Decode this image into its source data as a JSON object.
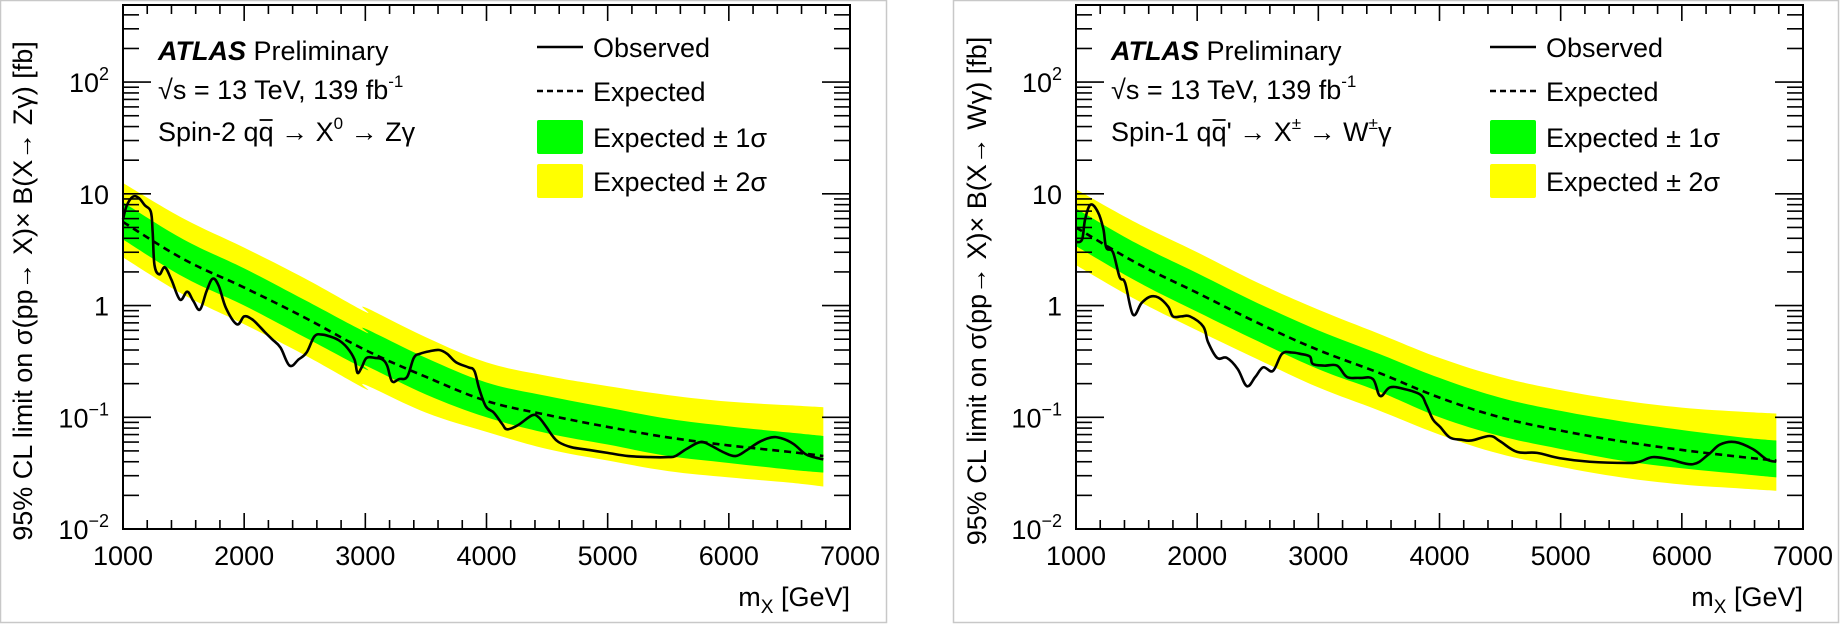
{
  "colors": {
    "observed": "#000000",
    "expected": "#000000",
    "band_1sigma": "#00ff00",
    "band_2sigma": "#ffff00",
    "frame": "#000000",
    "panel_border": "#c8c8c8"
  },
  "chart_data": [
    {
      "type": "line",
      "panel": "left",
      "title_lines": {
        "experiment": "ATLAS",
        "status": "Preliminary",
        "energy_prefix": "√s = 13 TeV, 139 fb",
        "energy_sup": "-1",
        "process_pre": "Spin-2 q",
        "process_qbar": "q",
        "process_arrow1": " → X",
        "process_sup": "0",
        "process_post": " → Zγ"
      },
      "xlabel": "m",
      "xlabel_sub": "X",
      "xlabel_unit": " [GeV]",
      "ylabel": "95% CL limit on σ(pp→ X)× B(X→ Zγ) [fb]",
      "xlim": [
        1000,
        7000
      ],
      "ylim": [
        0.01,
        490
      ],
      "yscale": "log",
      "xticks": [
        "1000",
        "2000",
        "3000",
        "4000",
        "5000",
        "6000",
        "7000"
      ],
      "yticks": [
        {
          "value": 0.01,
          "base": "10",
          "exp": "−2"
        },
        {
          "value": 0.1,
          "base": "10",
          "exp": "−1"
        },
        {
          "value": 1,
          "base": "1",
          "exp": ""
        },
        {
          "value": 10,
          "base": "10",
          "exp": ""
        },
        {
          "value": 100,
          "base": "10",
          "exp": "2"
        }
      ],
      "legend": {
        "position": "top-right",
        "entries": [
          {
            "label": "Observed",
            "style": "solid-line"
          },
          {
            "label": "Expected",
            "style": "dashed-line"
          },
          {
            "label": "Expected ± 1σ",
            "style": "green-box"
          },
          {
            "label": "Expected ± 2σ",
            "style": "yellow-box"
          }
        ]
      },
      "series": [
        {
          "name": "Observed",
          "x": [
            1000,
            1030,
            1080,
            1130,
            1180,
            1230,
            1245,
            1260,
            1300,
            1345,
            1400,
            1470,
            1530,
            1580,
            1635,
            1690,
            1740,
            1790,
            1850,
            1940,
            2000,
            2060,
            2110,
            2170,
            2230,
            2300,
            2375,
            2450,
            2515,
            2580,
            2640,
            2705,
            2780,
            2850,
            2910,
            2935,
            2970,
            3010,
            3080,
            3140,
            3180,
            3220,
            3280,
            3345,
            3400,
            3450,
            3530,
            3610,
            3675,
            3750,
            3850,
            3900,
            3940,
            3995,
            4060,
            4130,
            4170,
            4260,
            4375,
            4430,
            4490,
            4545,
            4595,
            4700,
            4845,
            5000,
            5170,
            5350,
            5500,
            5560,
            5650,
            5765,
            5850,
            5950,
            6055,
            6150,
            6250,
            6350,
            6430,
            6530,
            6630,
            6700,
            6780
          ],
          "y": [
            5.9,
            7.8,
            9.4,
            9.2,
            7.9,
            6.9,
            4.5,
            2.3,
            1.9,
            2.2,
            1.7,
            1.13,
            1.33,
            1.1,
            0.92,
            1.35,
            1.74,
            1.5,
            0.95,
            0.68,
            0.8,
            0.76,
            0.68,
            0.58,
            0.5,
            0.42,
            0.29,
            0.33,
            0.38,
            0.53,
            0.55,
            0.53,
            0.49,
            0.42,
            0.33,
            0.25,
            0.28,
            0.34,
            0.34,
            0.33,
            0.29,
            0.21,
            0.22,
            0.23,
            0.34,
            0.37,
            0.39,
            0.4,
            0.37,
            0.31,
            0.28,
            0.26,
            0.18,
            0.125,
            0.11,
            0.087,
            0.078,
            0.085,
            0.104,
            0.1,
            0.083,
            0.068,
            0.06,
            0.054,
            0.051,
            0.048,
            0.045,
            0.044,
            0.044,
            0.045,
            0.052,
            0.06,
            0.056,
            0.049,
            0.045,
            0.051,
            0.06,
            0.066,
            0.065,
            0.058,
            0.047,
            0.044,
            0.042
          ]
        },
        {
          "name": "Expected",
          "x": [
            1000,
            1500,
            2000,
            2500,
            3000,
            3500,
            4000,
            4500,
            5000,
            5500,
            6000,
            6500,
            6780
          ],
          "y": [
            5.6,
            2.6,
            1.45,
            0.78,
            0.4,
            0.23,
            0.14,
            0.105,
            0.082,
            0.066,
            0.056,
            0.049,
            0.045
          ]
        },
        {
          "name": "Expected ± 1σ",
          "x": [
            1000,
            1500,
            2000,
            2500,
            2999,
            3001,
            3500,
            4000,
            4500,
            5000,
            5500,
            6000,
            6500,
            6780
          ],
          "upper": [
            8.4,
            3.9,
            2.15,
            1.12,
            0.58,
            0.62,
            0.34,
            0.205,
            0.155,
            0.122,
            0.097,
            0.083,
            0.073,
            0.068
          ],
          "lower": [
            3.9,
            1.8,
            1.0,
            0.52,
            0.27,
            0.29,
            0.16,
            0.1,
            0.072,
            0.057,
            0.045,
            0.039,
            0.034,
            0.032
          ]
        },
        {
          "name": "Expected ± 2σ",
          "x": [
            1000,
            1500,
            2000,
            2500,
            2999,
            3001,
            3500,
            4000,
            4500,
            5000,
            5500,
            6000,
            6500,
            6780
          ],
          "upper": [
            12.5,
            6.0,
            3.3,
            1.75,
            0.88,
            0.96,
            0.52,
            0.31,
            0.235,
            0.19,
            0.158,
            0.138,
            0.128,
            0.123
          ],
          "lower": [
            2.7,
            1.25,
            0.68,
            0.36,
            0.18,
            0.195,
            0.11,
            0.074,
            0.052,
            0.041,
            0.033,
            0.029,
            0.026,
            0.024
          ]
        }
      ]
    },
    {
      "type": "line",
      "panel": "right",
      "title_lines": {
        "experiment": "ATLAS",
        "status": "Preliminary",
        "energy_prefix": "√s = 13 TeV, 139 fb",
        "energy_sup": "-1",
        "process_pre": "Spin-1 q",
        "process_qbar": "q",
        "process_arrow1": "' → X",
        "process_sup": "±",
        "process_post": " → W",
        "process_post_sup": "±",
        "process_tail": "γ"
      },
      "xlabel": "m",
      "xlabel_sub": "X",
      "xlabel_unit": " [GeV]",
      "ylabel": "95% CL limit on σ(pp→ X)× B(X→ Wγ) [fb]",
      "xlim": [
        1000,
        7000
      ],
      "ylim": [
        0.01,
        490
      ],
      "yscale": "log",
      "xticks": [
        "1000",
        "2000",
        "3000",
        "4000",
        "5000",
        "6000",
        "7000"
      ],
      "yticks": [
        {
          "value": 0.01,
          "base": "10",
          "exp": "−2"
        },
        {
          "value": 0.1,
          "base": "10",
          "exp": "−1"
        },
        {
          "value": 1,
          "base": "1",
          "exp": ""
        },
        {
          "value": 10,
          "base": "10",
          "exp": ""
        },
        {
          "value": 100,
          "base": "10",
          "exp": "2"
        }
      ],
      "legend": {
        "position": "top-right",
        "entries": [
          {
            "label": "Observed",
            "style": "solid-line"
          },
          {
            "label": "Expected",
            "style": "dashed-line"
          },
          {
            "label": "Expected ± 1σ",
            "style": "green-box"
          },
          {
            "label": "Expected ± 2σ",
            "style": "yellow-box"
          }
        ]
      },
      "series": [
        {
          "name": "Observed",
          "x": [
            1000,
            1050,
            1075,
            1120,
            1180,
            1225,
            1250,
            1305,
            1360,
            1405,
            1470,
            1540,
            1610,
            1680,
            1760,
            1800,
            1870,
            1940,
            2050,
            2090,
            2165,
            2245,
            2335,
            2410,
            2480,
            2545,
            2625,
            2700,
            2780,
            2850,
            2930,
            2955,
            3050,
            3155,
            3235,
            3340,
            3450,
            3510,
            3590,
            3700,
            3840,
            3890,
            3945,
            4005,
            4085,
            4180,
            4265,
            4415,
            4500,
            4640,
            4805,
            4995,
            5240,
            5545,
            5650,
            5760,
            5900,
            6090,
            6215,
            6315,
            6440,
            6585,
            6700,
            6780
          ],
          "y": [
            3.7,
            3.9,
            5.9,
            8.0,
            6.9,
            4.9,
            3.3,
            3.0,
            1.8,
            1.6,
            0.83,
            1.05,
            1.2,
            1.18,
            0.98,
            0.8,
            0.8,
            0.8,
            0.65,
            0.47,
            0.34,
            0.34,
            0.27,
            0.19,
            0.23,
            0.28,
            0.26,
            0.37,
            0.38,
            0.37,
            0.35,
            0.3,
            0.29,
            0.29,
            0.23,
            0.225,
            0.22,
            0.155,
            0.185,
            0.18,
            0.16,
            0.13,
            0.096,
            0.082,
            0.066,
            0.063,
            0.062,
            0.068,
            0.061,
            0.049,
            0.048,
            0.043,
            0.04,
            0.039,
            0.04,
            0.044,
            0.042,
            0.038,
            0.046,
            0.057,
            0.06,
            0.052,
            0.042,
            0.04
          ]
        },
        {
          "name": "Expected",
          "x": [
            1000,
            1500,
            2000,
            2500,
            3000,
            3500,
            4000,
            4500,
            5000,
            5500,
            6000,
            6500,
            6780
          ],
          "y": [
            5.0,
            2.4,
            1.3,
            0.7,
            0.4,
            0.25,
            0.15,
            0.1,
            0.076,
            0.061,
            0.051,
            0.044,
            0.041
          ]
        },
        {
          "name": "Expected ± 1σ",
          "x": [
            1000,
            1500,
            2000,
            2500,
            3000,
            3500,
            4000,
            4500,
            5000,
            5500,
            6000,
            6500,
            6780
          ],
          "upper": [
            7.4,
            3.6,
            1.95,
            1.05,
            0.6,
            0.37,
            0.225,
            0.15,
            0.114,
            0.092,
            0.077,
            0.066,
            0.062
          ],
          "lower": [
            3.4,
            1.65,
            0.88,
            0.48,
            0.27,
            0.17,
            0.1,
            0.068,
            0.052,
            0.041,
            0.035,
            0.031,
            0.029
          ]
        },
        {
          "name": "Expected ± 2σ",
          "x": [
            1000,
            1500,
            2000,
            2500,
            3000,
            3500,
            4000,
            4500,
            5000,
            5500,
            6000,
            6500,
            6780
          ],
          "upper": [
            11.0,
            5.5,
            3.0,
            1.6,
            0.92,
            0.56,
            0.34,
            0.23,
            0.175,
            0.142,
            0.122,
            0.112,
            0.108
          ],
          "lower": [
            2.3,
            1.12,
            0.6,
            0.33,
            0.185,
            0.115,
            0.07,
            0.047,
            0.036,
            0.029,
            0.025,
            0.023,
            0.022
          ]
        }
      ]
    }
  ]
}
